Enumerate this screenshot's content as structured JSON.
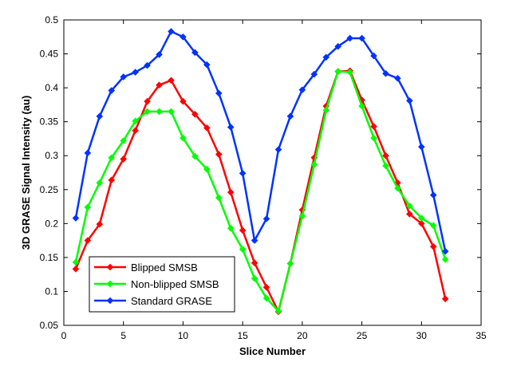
{
  "chart_data": {
    "type": "line",
    "title": "",
    "xlabel": "Slice Number",
    "ylabel": "3D GRASE Signal Intensity (au)",
    "xlim": [
      0,
      35
    ],
    "ylim": [
      0.05,
      0.5
    ],
    "xticks": [
      0,
      5,
      10,
      15,
      20,
      25,
      30,
      35
    ],
    "yticks": [
      0.05,
      0.1,
      0.15,
      0.2,
      0.25,
      0.3,
      0.35,
      0.4,
      0.45,
      0.5
    ],
    "grid": false,
    "legend_position": "bottom-left",
    "x": [
      1,
      2,
      3,
      4,
      5,
      6,
      7,
      8,
      9,
      10,
      11,
      12,
      13,
      14,
      15,
      16,
      17,
      18,
      19,
      20,
      21,
      22,
      23,
      24,
      25,
      26,
      27,
      28,
      29,
      30,
      31,
      32
    ],
    "series": [
      {
        "name": "Blipped SMSB",
        "color": "#ff0000",
        "values": [
          0.133,
          0.175,
          0.199,
          0.264,
          0.295,
          0.337,
          0.38,
          0.404,
          0.411,
          0.38,
          0.361,
          0.341,
          0.302,
          0.246,
          0.19,
          0.142,
          0.106,
          0.07,
          0.141,
          0.22,
          0.297,
          0.373,
          0.424,
          0.425,
          0.382,
          0.343,
          0.3,
          0.26,
          0.214,
          0.2,
          0.166,
          0.089
        ]
      },
      {
        "name": "Non-blipped SMSB",
        "color": "#00ff00",
        "values": [
          0.143,
          0.224,
          0.26,
          0.297,
          0.322,
          0.351,
          0.365,
          0.365,
          0.365,
          0.326,
          0.299,
          0.28,
          0.238,
          0.193,
          0.162,
          0.119,
          0.09,
          0.071,
          0.141,
          0.211,
          0.287,
          0.367,
          0.424,
          0.423,
          0.373,
          0.326,
          0.285,
          0.252,
          0.226,
          0.208,
          0.197,
          0.147
        ]
      },
      {
        "name": "Standard GRASE",
        "color": "#0033ff",
        "values": [
          0.208,
          0.304,
          0.358,
          0.396,
          0.416,
          0.423,
          0.433,
          0.449,
          0.483,
          0.475,
          0.452,
          0.434,
          0.392,
          0.342,
          0.274,
          0.175,
          0.207,
          0.309,
          0.358,
          0.397,
          0.42,
          0.445,
          0.461,
          0.473,
          0.473,
          0.447,
          0.421,
          0.414,
          0.381,
          0.313,
          0.242,
          0.159
        ]
      }
    ]
  }
}
